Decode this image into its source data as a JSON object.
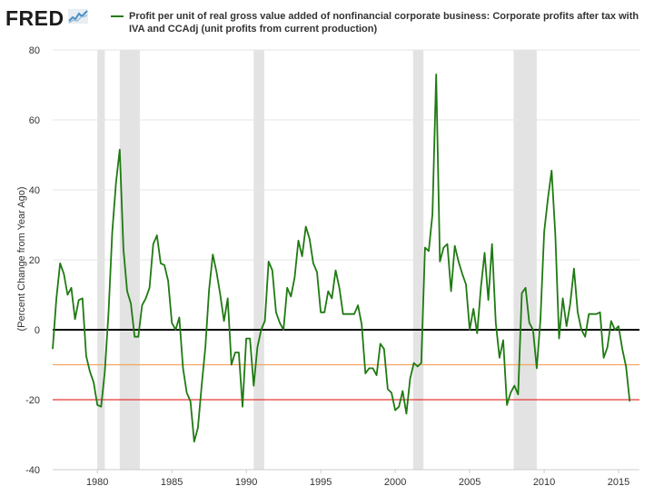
{
  "header": {
    "logo_text": "FRED",
    "logo_icon": "trend-line-icon",
    "legend_text": "Profit per unit of real gross value added of nonfinancial corporate business: Corporate profits after tax with IVA and CCAdj (unit profits from current production)"
  },
  "colors": {
    "series": "#1f7a12",
    "recession": "#e3e3e3",
    "zero_line": "#000000",
    "ref_orange": "#f4a460",
    "ref_red": "#e53935"
  },
  "chart_data": {
    "type": "line",
    "title": "Profit per unit of real gross value added of nonfinancial corporate business: Corporate profits after tax with IVA and CCAdj (unit profits from current production)",
    "ylabel": "(Percent Change from Year Ago)",
    "xlabel": "",
    "xlim": [
      1977.0,
      2016.4
    ],
    "ylim": [
      -40,
      80
    ],
    "x_ticks": [
      1980,
      1985,
      1990,
      1995,
      2000,
      2005,
      2010,
      2015
    ],
    "x_tick_labels": [
      "1980",
      "1985",
      "1990",
      "1995",
      "2000",
      "2005",
      "2010",
      "2015"
    ],
    "y_ticks": [
      -40,
      -20,
      0,
      20,
      40,
      60,
      80
    ],
    "y_tick_labels": [
      "-40",
      "-20",
      "0",
      "20",
      "40",
      "60",
      "80"
    ],
    "grid": "horizontal",
    "legend": "top",
    "reference_lines": [
      {
        "y": 0,
        "color": "#000000"
      },
      {
        "y": -10,
        "color": "#f4a460"
      },
      {
        "y": -20,
        "color": "#e53935"
      }
    ],
    "recessions": [
      [
        1980.0,
        1980.5
      ],
      [
        1981.5,
        1982.85
      ],
      [
        1990.5,
        1991.2
      ],
      [
        2001.2,
        2001.9
      ],
      [
        2007.95,
        2009.5
      ]
    ],
    "series": [
      {
        "color": "#1f7a12",
        "x": [
          1977.0,
          1977.25,
          1977.5,
          1977.75,
          1978.0,
          1978.25,
          1978.5,
          1978.75,
          1979.0,
          1979.25,
          1979.5,
          1979.75,
          1980.0,
          1980.25,
          1980.5,
          1980.75,
          1981.0,
          1981.25,
          1981.5,
          1981.75,
          1982.0,
          1982.25,
          1982.5,
          1982.75,
          1983.0,
          1983.25,
          1983.5,
          1983.75,
          1984.0,
          1984.25,
          1984.5,
          1984.75,
          1985.0,
          1985.25,
          1985.5,
          1985.75,
          1986.0,
          1986.25,
          1986.5,
          1986.75,
          1987.0,
          1987.25,
          1987.5,
          1987.75,
          1988.0,
          1988.25,
          1988.5,
          1988.75,
          1989.0,
          1989.25,
          1989.5,
          1989.75,
          1990.0,
          1990.25,
          1990.5,
          1990.75,
          1991.0,
          1991.25,
          1991.5,
          1991.75,
          1992.0,
          1992.25,
          1992.5,
          1992.75,
          1993.0,
          1993.25,
          1993.5,
          1993.75,
          1994.0,
          1994.25,
          1994.5,
          1994.75,
          1995.0,
          1995.25,
          1995.5,
          1995.75,
          1996.0,
          1996.25,
          1996.5,
          1996.75,
          1997.0,
          1997.25,
          1997.5,
          1997.75,
          1998.0,
          1998.25,
          1998.5,
          1998.75,
          1999.0,
          1999.25,
          1999.5,
          1999.75,
          2000.0,
          2000.25,
          2000.5,
          2000.75,
          2001.0,
          2001.25,
          2001.5,
          2001.75,
          2002.0,
          2002.25,
          2002.5,
          2002.75,
          2003.0,
          2003.25,
          2003.5,
          2003.75,
          2004.0,
          2004.25,
          2004.5,
          2004.75,
          2005.0,
          2005.25,
          2005.5,
          2005.75,
          2006.0,
          2006.25,
          2006.5,
          2006.75,
          2007.0,
          2007.25,
          2007.5,
          2007.75,
          2008.0,
          2008.25,
          2008.5,
          2008.75,
          2009.0,
          2009.25,
          2009.5,
          2009.75,
          2010.0,
          2010.25,
          2010.5,
          2010.75,
          2011.0,
          2011.25,
          2011.5,
          2011.75,
          2012.0,
          2012.25,
          2012.5,
          2012.75,
          2013.0,
          2013.25,
          2013.5,
          2013.75,
          2014.0,
          2014.25,
          2014.5,
          2014.75,
          2015.0,
          2015.25,
          2015.5,
          2015.75
        ],
        "y": [
          -5.5,
          9,
          19,
          16,
          10,
          12,
          3,
          8.5,
          9,
          -7.5,
          -12,
          -15,
          -21.5,
          -22,
          -12,
          5,
          28,
          42,
          51.5,
          23,
          11,
          7.5,
          -2,
          -2,
          7,
          9,
          12,
          24.5,
          27,
          19,
          18.5,
          14,
          2,
          0,
          3.5,
          -11,
          -18,
          -20.5,
          -32,
          -28,
          -16,
          -5,
          11.5,
          21.5,
          16.5,
          10,
          2.5,
          9,
          -10,
          -6.5,
          -6.5,
          -22,
          -2.5,
          -2.5,
          -16,
          -5,
          0,
          2.5,
          19.5,
          17,
          5,
          2,
          0,
          12,
          9.5,
          15,
          25.5,
          21,
          29.5,
          26,
          19,
          16.5,
          5,
          5,
          11,
          9,
          17,
          12,
          4.5,
          4.5,
          4.5,
          4.5,
          7,
          1.5,
          -12.5,
          -11,
          -11,
          -13,
          -4,
          -5.5,
          -17,
          -18,
          -23,
          -22,
          -17.5,
          -24,
          -14,
          -9.5,
          -10.5,
          -9.5,
          23.5,
          22.5,
          33,
          73,
          19.5,
          23.5,
          24.5,
          11,
          24,
          19.5,
          16,
          13,
          0,
          6,
          -1,
          12,
          22,
          8.5,
          24.5,
          2,
          -8,
          -3,
          -21.5,
          -18,
          -16,
          -18.5,
          10.5,
          12,
          2,
          0,
          -11,
          3,
          28,
          37.5,
          45.5,
          27,
          -2.5,
          9,
          1,
          7.5,
          17.5,
          5,
          0,
          -2,
          4.5,
          4.5,
          4.5,
          5,
          -8,
          -5,
          2.5,
          0,
          1,
          -5.5,
          -10.5,
          -20.5
        ]
      }
    ]
  }
}
